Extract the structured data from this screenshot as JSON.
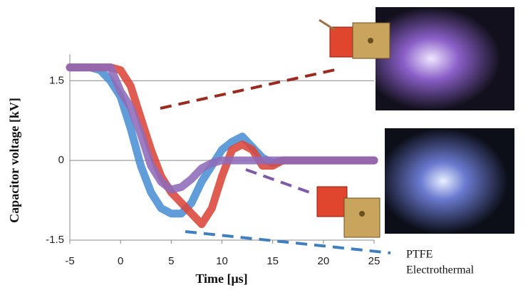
{
  "chart_data": {
    "type": "line",
    "x_label": "Time [μs]",
    "y_label": "Capacitor voltage [kV]",
    "annotations": [
      "PTFE",
      "Electrothermal"
    ],
    "x": [
      -5,
      -4,
      -3,
      -2,
      -1,
      0,
      1,
      2,
      3,
      4,
      5,
      6,
      7,
      8,
      9,
      10,
      11,
      12,
      13,
      14,
      15,
      16,
      17,
      18,
      19,
      20,
      21,
      22,
      23,
      24,
      25
    ],
    "series": [
      {
        "color": "#4a8fd4",
        "values": [
          1.75,
          1.75,
          1.75,
          1.7,
          1.5,
          1.2,
          0.6,
          -0.1,
          -0.6,
          -0.9,
          -1.0,
          -1.0,
          -0.8,
          -0.4,
          -0.1,
          0.2,
          0.35,
          0.45,
          0.25,
          0.05,
          -0.05,
          0,
          0,
          0,
          0,
          0,
          0,
          0,
          0,
          0,
          0
        ]
      },
      {
        "color": "#d9453a",
        "values": [
          1.75,
          1.75,
          1.75,
          1.75,
          1.75,
          1.7,
          1.4,
          0.8,
          0.2,
          -0.3,
          -0.6,
          -0.8,
          -1.0,
          -1.2,
          -0.9,
          -0.3,
          0.2,
          0.3,
          0.2,
          -0.1,
          -0.1,
          0,
          0,
          0,
          0,
          0,
          0,
          0,
          0,
          0,
          0
        ]
      },
      {
        "color": "#8e6bb8",
        "values": [
          1.75,
          1.75,
          1.75,
          1.75,
          1.75,
          1.3,
          1.0,
          0.5,
          -0.1,
          -0.4,
          -0.55,
          -0.5,
          -0.35,
          -0.15,
          -0.05,
          0,
          0,
          0,
          0,
          0,
          0,
          0,
          0,
          0,
          0,
          0,
          0,
          0,
          0,
          0,
          0
        ]
      }
    ],
    "xlim": [
      -5,
      25
    ],
    "xticks": [
      -5,
      0,
      5,
      10,
      15,
      20,
      25
    ],
    "ylim": [
      -1.5,
      2
    ],
    "yticks": [
      -1.5,
      0,
      1.5
    ],
    "grid": true
  }
}
